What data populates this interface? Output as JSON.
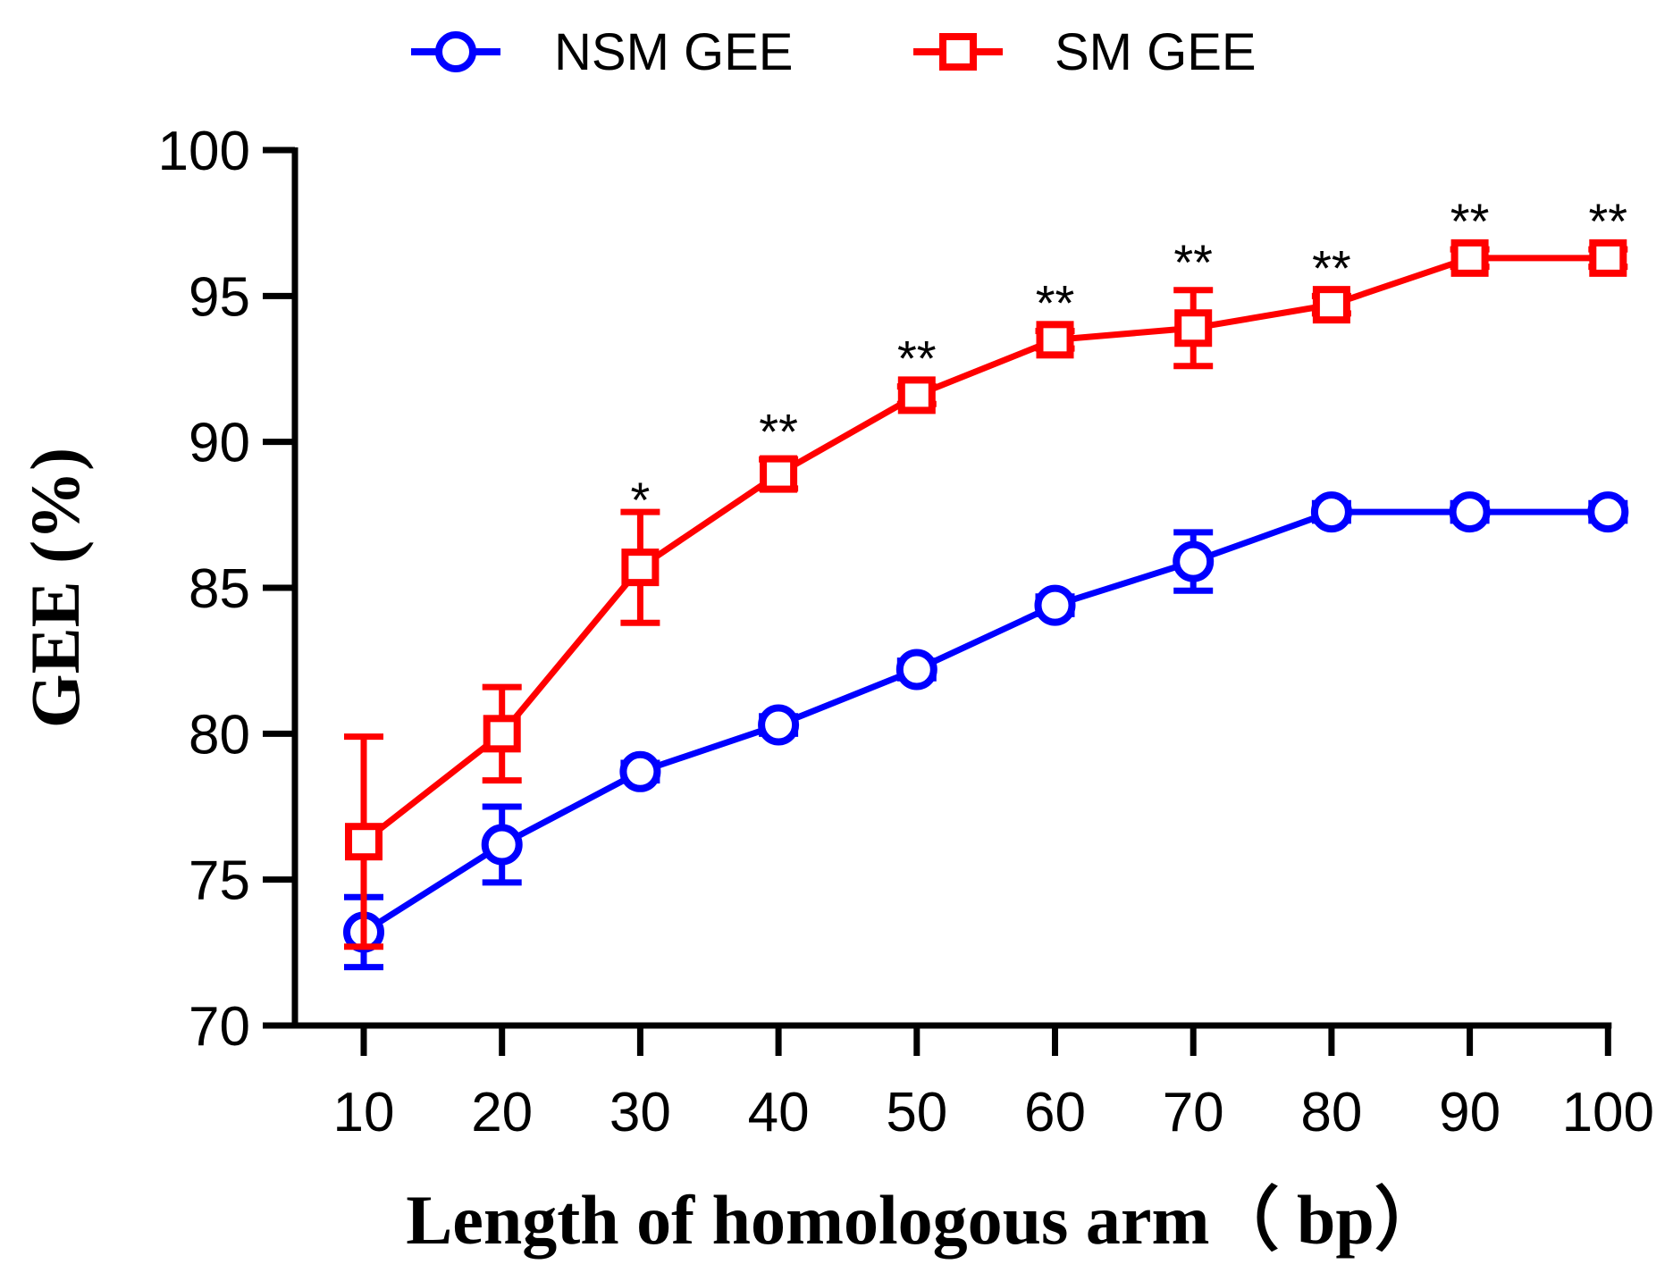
{
  "chart_data": {
    "type": "line",
    "title": "",
    "xlabel": "Length of homologous arm（ bp）",
    "ylabel": "GEE (%)",
    "x": [
      10,
      20,
      30,
      40,
      50,
      60,
      70,
      80,
      90,
      100
    ],
    "xticks": [
      "10",
      "20",
      "30",
      "40",
      "50",
      "60",
      "70",
      "80",
      "90",
      "100"
    ],
    "yticks": [
      "70",
      "75",
      "80",
      "85",
      "90",
      "95",
      "100"
    ],
    "ylim": [
      70,
      100
    ],
    "legend_position": "top-center",
    "series": [
      {
        "name": "NSM GEE",
        "color": "#0000ff",
        "marker": "circle",
        "values": [
          73.2,
          76.2,
          78.7,
          80.3,
          82.2,
          84.4,
          85.9,
          87.6,
          87.6,
          87.6
        ],
        "errors": [
          1.2,
          1.3,
          0.3,
          0.3,
          0.3,
          0.3,
          1.0,
          0.3,
          0.3,
          0.3
        ]
      },
      {
        "name": "SM GEE",
        "color": "#ff0000",
        "marker": "square",
        "values": [
          76.3,
          80.0,
          85.7,
          88.9,
          91.6,
          93.5,
          93.9,
          94.7,
          96.3,
          96.3
        ],
        "errors": [
          3.6,
          1.6,
          1.9,
          0.5,
          0.3,
          0.3,
          1.3,
          0.3,
          0.3,
          0.3
        ]
      }
    ],
    "significance": [
      "",
      "",
      "*",
      "**",
      "**",
      "**",
      "**",
      "**",
      "**",
      "**"
    ]
  }
}
